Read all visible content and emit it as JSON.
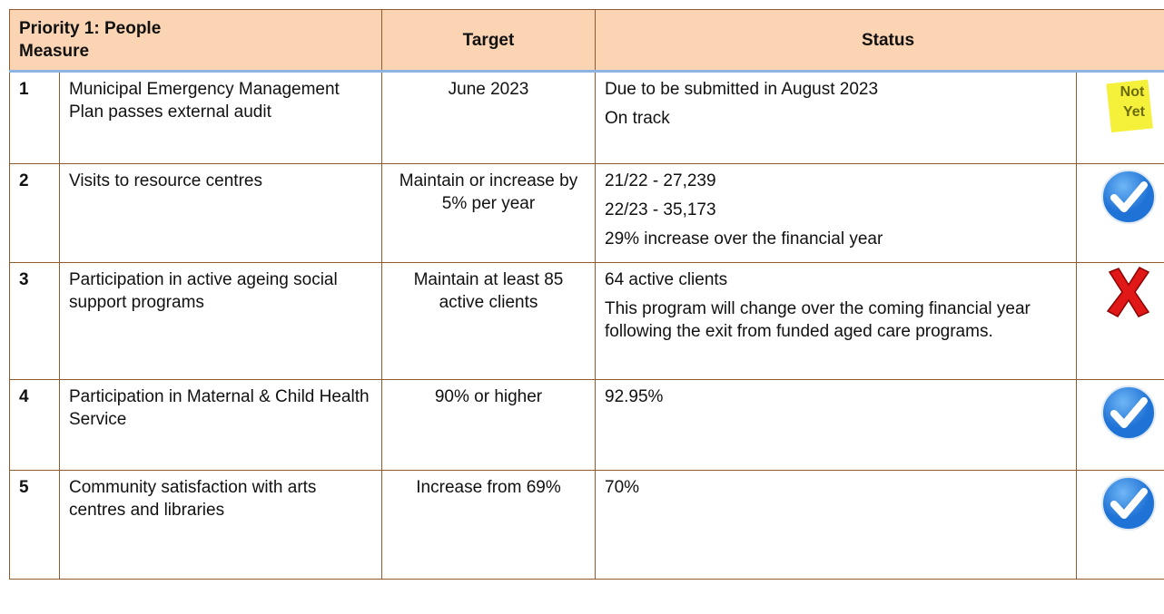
{
  "header": {
    "title": "Priority 1: People",
    "measure": "Measure",
    "target": "Target",
    "status": "Status"
  },
  "rows": [
    {
      "number": "1",
      "measure": "Municipal Emergency Management Plan passes external audit",
      "target": "June 2023",
      "status": [
        "Due to be submitted in August 2023",
        "On track"
      ],
      "icon": "note",
      "icon_text": [
        "Not",
        "Yet"
      ]
    },
    {
      "number": "2",
      "measure": "Visits to resource centres",
      "target": "Maintain or increase by 5% per year",
      "status": [
        "21/22 - 27,239",
        "22/23 - 35,173",
        "29% increase over the financial year"
      ],
      "icon": "check"
    },
    {
      "number": "3",
      "measure": "Participation in active ageing social support programs",
      "target": "Maintain at least 85 active clients",
      "status": [
        "64 active clients",
        "This program will change over the coming financial year following the exit from funded aged care programs."
      ],
      "icon": "cross"
    },
    {
      "number": "4",
      "measure": "Participation in Maternal & Child Health Service",
      "target": "90% or higher",
      "status": [
        "92.95%"
      ],
      "icon": "check"
    },
    {
      "number": "5",
      "measure": "Community satisfaction with arts centres and libraries",
      "target": "Increase from 69%",
      "status": [
        "70%"
      ],
      "icon": "check"
    }
  ]
}
